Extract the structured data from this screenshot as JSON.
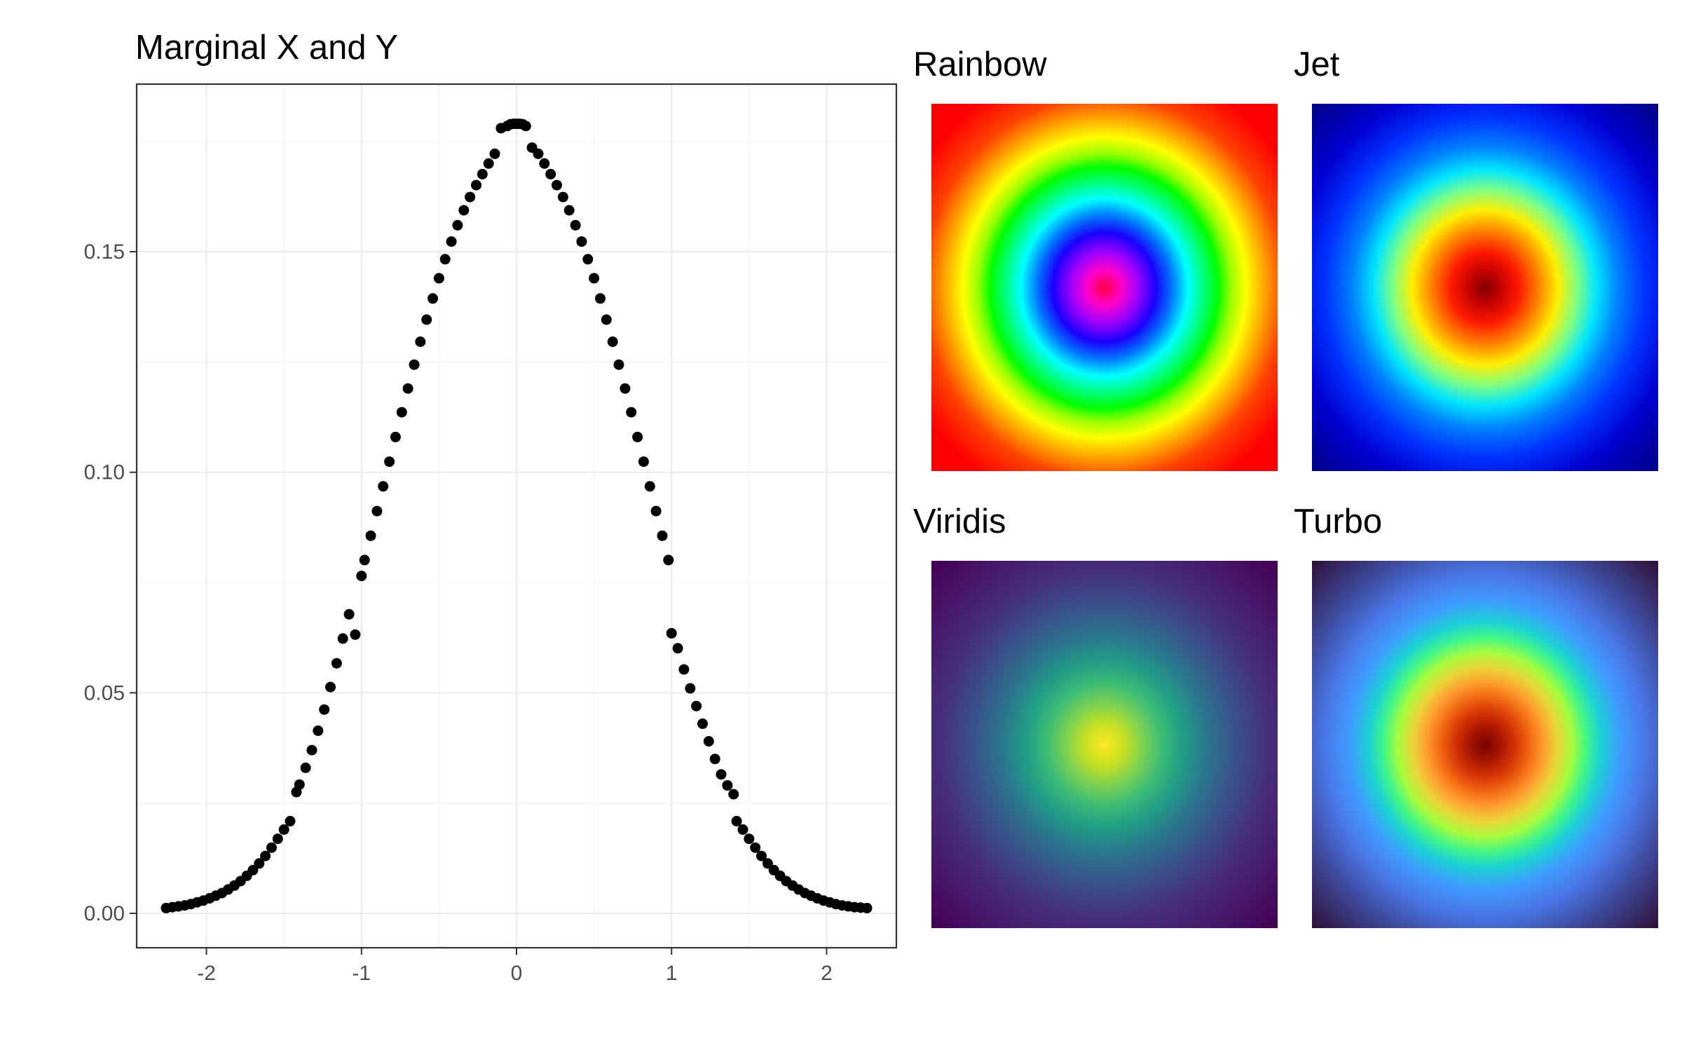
{
  "chart_data": [
    {
      "type": "scatter",
      "title": "Marginal X and Y",
      "xlabel": "",
      "ylabel": "",
      "xlim": [
        -2.45,
        2.45
      ],
      "ylim": [
        -0.0078,
        0.188
      ],
      "x_ticks": [
        -2,
        -1,
        0,
        1,
        2
      ],
      "x_tick_labels": [
        "-2",
        "-1",
        "0",
        "1",
        "2"
      ],
      "y_ticks": [
        0.0,
        0.05,
        0.1,
        0.15
      ],
      "y_tick_labels": [
        "0.00",
        "0.05",
        "0.10",
        "0.15"
      ],
      "grid": true,
      "marker_color": "#000000",
      "series": [
        {
          "x": [
            -2.26,
            -2.22,
            -2.18,
            -2.14,
            -2.1,
            -2.06,
            -2.02,
            -1.98,
            -1.94,
            -1.9,
            -1.86,
            -1.82,
            -1.78,
            -1.74,
            -1.7,
            -1.66,
            -1.62,
            -1.58,
            -1.54,
            -1.5,
            -1.46,
            -1.42,
            -1.4,
            -1.36,
            -1.32,
            -1.28,
            -1.24,
            -1.2,
            -1.16,
            -1.12,
            -1.08,
            -1.04,
            -1.0,
            -0.98,
            -0.94,
            -0.9,
            -0.86,
            -0.82,
            -0.78,
            -0.74,
            -0.7,
            -0.66,
            -0.62,
            -0.58,
            -0.54,
            -0.5,
            -0.46,
            -0.42,
            -0.38,
            -0.34,
            -0.3,
            -0.26,
            -0.22,
            -0.18,
            -0.14,
            -0.1,
            -0.06,
            -0.04,
            -0.02,
            0.0,
            0.02,
            0.04,
            0.06,
            0.1,
            0.14,
            0.18,
            0.22,
            0.26,
            0.3,
            0.34,
            0.38,
            0.42,
            0.46,
            0.5,
            0.54,
            0.58,
            0.62,
            0.66,
            0.7,
            0.74,
            0.78,
            0.82,
            0.86,
            0.9,
            0.94,
            0.98,
            1.0,
            1.04,
            1.08,
            1.12,
            1.16,
            1.2,
            1.24,
            1.28,
            1.32,
            1.36,
            1.4,
            1.42,
            1.46,
            1.5,
            1.54,
            1.58,
            1.62,
            1.66,
            1.7,
            1.74,
            1.78,
            1.82,
            1.86,
            1.9,
            1.94,
            1.98,
            2.02,
            2.06,
            2.1,
            2.14,
            2.18,
            2.22,
            2.26
          ],
          "y": [
            0.0012,
            0.0014,
            0.0016,
            0.0018,
            0.0021,
            0.0025,
            0.0029,
            0.0034,
            0.004,
            0.0046,
            0.0054,
            0.0063,
            0.0073,
            0.0085,
            0.0098,
            0.0113,
            0.013,
            0.0149,
            0.0169,
            0.019,
            0.0209,
            0.0275,
            0.0292,
            0.033,
            0.037,
            0.0414,
            0.0462,
            0.0513,
            0.0567,
            0.0623,
            0.0678,
            0.0632,
            0.0765,
            0.0801,
            0.0856,
            0.0912,
            0.0968,
            0.1024,
            0.108,
            0.1136,
            0.119,
            0.1244,
            0.1296,
            0.1346,
            0.1394,
            0.144,
            0.1483,
            0.1523,
            0.156,
            0.1594,
            0.1624,
            0.1651,
            0.1676,
            0.17,
            0.1722,
            0.178,
            0.1785,
            0.1789,
            0.179,
            0.179,
            0.179,
            0.1789,
            0.1785,
            0.1736,
            0.1722,
            0.17,
            0.1676,
            0.1651,
            0.1624,
            0.1594,
            0.156,
            0.1523,
            0.1483,
            0.144,
            0.1394,
            0.1346,
            0.1296,
            0.1244,
            0.119,
            0.1136,
            0.108,
            0.1024,
            0.0968,
            0.0912,
            0.0856,
            0.0801,
            0.0635,
            0.0601,
            0.0553,
            0.051,
            0.047,
            0.043,
            0.039,
            0.035,
            0.0315,
            0.029,
            0.027,
            0.0209,
            0.019,
            0.0169,
            0.0149,
            0.013,
            0.0113,
            0.0098,
            0.0085,
            0.0073,
            0.0063,
            0.0054,
            0.0046,
            0.004,
            0.0034,
            0.0029,
            0.0025,
            0.0021,
            0.0018,
            0.0016,
            0.0014,
            0.0013,
            0.0012
          ]
        }
      ]
    },
    {
      "type": "heatmap",
      "title": "Rainbow",
      "description_fn": "radial density, rainbow palette",
      "stops": [
        "#ff00aa",
        "#ff00ff",
        "#7f00ff",
        "#0000ff",
        "#007fff",
        "#00ffff",
        "#00ff7f",
        "#00ff00",
        "#7fff00",
        "#ffff00",
        "#ff7f00",
        "#ff0000"
      ],
      "center_color": "#ff0000"
    },
    {
      "type": "heatmap",
      "title": "Jet",
      "stops": [
        "#8b0000",
        "#ff0000",
        "#ff7f00",
        "#ffff00",
        "#7fff7f",
        "#00ffff",
        "#007fff",
        "#0000ff",
        "#00008f"
      ],
      "center_color": "#8b0000"
    },
    {
      "type": "heatmap",
      "title": "Viridis",
      "stops": [
        "#fde725",
        "#b5de2b",
        "#6ece58",
        "#35b779",
        "#1f9e89",
        "#26828e",
        "#31688e",
        "#3e4989",
        "#482878",
        "#440154"
      ],
      "center_color": "#fde725"
    },
    {
      "type": "heatmap",
      "title": "Turbo",
      "stops": [
        "#7a0403",
        "#b21a02",
        "#e4460a",
        "#fb8022",
        "#f5c83a",
        "#c4f234",
        "#8afe4b",
        "#33f297",
        "#1ae4b6",
        "#28bbec",
        "#4686fb",
        "#4456c7",
        "#30123b"
      ],
      "center_color": "#7a0403"
    }
  ]
}
